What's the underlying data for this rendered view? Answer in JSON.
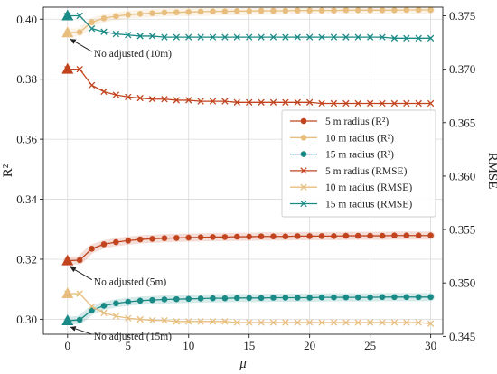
{
  "chart_data": {
    "type": "line",
    "xlabel": "μ",
    "ylabel_left": "R²",
    "ylabel_right": "RMSE",
    "xlim": [
      -2,
      31
    ],
    "ylim_left": [
      0.295,
      0.404
    ],
    "ylim_right": [
      0.3452,
      0.3758
    ],
    "xticks": [
      0,
      5,
      10,
      15,
      20,
      25,
      30
    ],
    "yticks_left": [
      0.3,
      0.32,
      0.34,
      0.36,
      0.38,
      0.4
    ],
    "yticks_left_labels": [
      "0.30",
      "0.32",
      "0.34",
      "0.36",
      "0.38",
      "0.40"
    ],
    "yticks_right": [
      0.345,
      0.35,
      0.355,
      0.36,
      0.365,
      0.37,
      0.375
    ],
    "yticks_right_labels": [
      "0.345",
      "0.350",
      "0.355",
      "0.360",
      "0.365",
      "0.370",
      "0.375"
    ],
    "grid": true,
    "legend_position": "center-right",
    "x": [
      0,
      1,
      2,
      3,
      4,
      5,
      6,
      7,
      8,
      9,
      10,
      11,
      12,
      13,
      14,
      15,
      16,
      17,
      18,
      19,
      20,
      21,
      22,
      23,
      24,
      25,
      26,
      27,
      28,
      29,
      30
    ],
    "series": [
      {
        "name": "5 m radius (R²)",
        "axis": "left",
        "marker": "circle",
        "color": "#c2441f",
        "values": [
          0.3195,
          0.3197,
          0.3235,
          0.325,
          0.3257,
          0.3262,
          0.3266,
          0.3268,
          0.327,
          0.3271,
          0.3272,
          0.3273,
          0.3274,
          0.3274,
          0.3275,
          0.3275,
          0.3276,
          0.3276,
          0.3276,
          0.3277,
          0.3277,
          0.3277,
          0.3277,
          0.3278,
          0.3278,
          0.3278,
          0.3278,
          0.3279,
          0.3279,
          0.3279,
          0.3279
        ]
      },
      {
        "name": "10 m radius (R²)",
        "axis": "left",
        "marker": "circle",
        "color": "#e8be7e",
        "values": [
          0.3955,
          0.3957,
          0.399,
          0.4003,
          0.401,
          0.4015,
          0.4018,
          0.402,
          0.4022,
          0.4023,
          0.4024,
          0.4025,
          0.4026,
          0.4026,
          0.4027,
          0.4027,
          0.4028,
          0.4028,
          0.4028,
          0.4029,
          0.4029,
          0.4029,
          0.4029,
          0.403,
          0.403,
          0.403,
          0.403,
          0.403,
          0.4031,
          0.4031,
          0.4031
        ]
      },
      {
        "name": "15 m radius (R²)",
        "axis": "left",
        "marker": "circle",
        "color": "#1a8a86",
        "values": [
          0.2995,
          0.2998,
          0.303,
          0.3045,
          0.3053,
          0.3058,
          0.3062,
          0.3064,
          0.3066,
          0.3067,
          0.3068,
          0.3069,
          0.307,
          0.307,
          0.3071,
          0.3071,
          0.3071,
          0.3072,
          0.3072,
          0.3072,
          0.3072,
          0.3073,
          0.3073,
          0.3073,
          0.3073,
          0.3073,
          0.3074,
          0.3074,
          0.3074,
          0.3074,
          0.3074
        ]
      },
      {
        "name": "5 m radius (RMSE)",
        "axis": "right",
        "marker": "x",
        "color": "#c2441f",
        "values": [
          0.37,
          0.37,
          0.3685,
          0.3679,
          0.3676,
          0.3674,
          0.3673,
          0.3672,
          0.3672,
          0.3671,
          0.3671,
          0.367,
          0.367,
          0.367,
          0.3669,
          0.3669,
          0.3669,
          0.3669,
          0.3669,
          0.3669,
          0.3669,
          0.3668,
          0.3668,
          0.3668,
          0.3668,
          0.3668,
          0.3668,
          0.3668,
          0.3668,
          0.3668,
          0.3668
        ]
      },
      {
        "name": "10 m radius (RMSE)",
        "axis": "right",
        "marker": "x",
        "color": "#e8be7e",
        "values": [
          0.349,
          0.349,
          0.3478,
          0.3472,
          0.3469,
          0.3467,
          0.3466,
          0.3465,
          0.3465,
          0.3464,
          0.3464,
          0.3464,
          0.3464,
          0.3464,
          0.3463,
          0.3463,
          0.3463,
          0.3463,
          0.3463,
          0.3463,
          0.3463,
          0.3463,
          0.3463,
          0.3463,
          0.3463,
          0.3463,
          0.3463,
          0.3463,
          0.3463,
          0.3463,
          0.3462
        ]
      },
      {
        "name": "15 m radius (RMSE)",
        "axis": "right",
        "marker": "x",
        "color": "#1a8a86",
        "values": [
          0.375,
          0.375,
          0.3738,
          0.3735,
          0.3733,
          0.3732,
          0.3731,
          0.3731,
          0.373,
          0.373,
          0.373,
          0.373,
          0.373,
          0.373,
          0.373,
          0.373,
          0.373,
          0.373,
          0.373,
          0.373,
          0.373,
          0.373,
          0.373,
          0.373,
          0.373,
          0.373,
          0.373,
          0.3729,
          0.3729,
          0.3729,
          0.3729
        ]
      }
    ],
    "baseline_markers": [
      {
        "series": 0,
        "x": 0,
        "y": 0.3195,
        "marker": "triangle"
      },
      {
        "series": 1,
        "x": 0,
        "y": 0.3955,
        "marker": "triangle"
      },
      {
        "series": 2,
        "x": 0,
        "y": 0.2995,
        "marker": "triangle"
      },
      {
        "series": 3,
        "x": 0,
        "y": 0.37,
        "marker": "triangle"
      },
      {
        "series": 4,
        "x": 0,
        "y": 0.349,
        "marker": "triangle"
      },
      {
        "series": 5,
        "x": 0,
        "y": 0.375,
        "marker": "triangle"
      }
    ],
    "annotations": [
      {
        "text": "No adjusted (10m)",
        "x": 0,
        "y": 0.3955
      },
      {
        "text": "No adjusted (5m)",
        "x": 0,
        "y": 0.3195
      },
      {
        "text": "No adjusted (15m)",
        "x": 0,
        "y": 0.2995
      }
    ]
  }
}
